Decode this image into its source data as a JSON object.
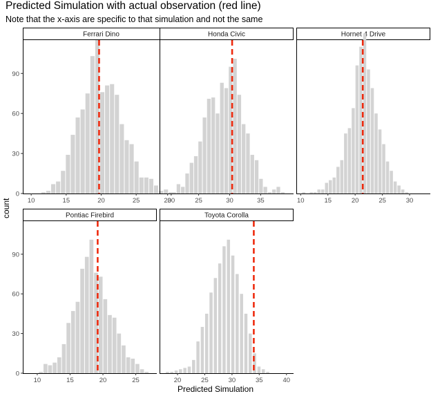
{
  "title": "Predicted Simulation with actual observation (red line)",
  "subtitle": "Note that the x-axis are specific to that simulation and not the same",
  "chart_data": {
    "type": "bar",
    "ylabel": "count",
    "xlabel": "Predicted Simulation",
    "ylim": [
      0,
      115
    ],
    "yticks": [
      0,
      30,
      60,
      90
    ],
    "bar_color": "#d3d3d3",
    "line_color": "#ee2a0e",
    "panels": [
      {
        "name": "Ferrari Dino",
        "xlim": [
          8.8,
          31.2
        ],
        "xticks": [
          10,
          15,
          20,
          25,
          30
        ],
        "actual": 19.7,
        "bins": [
          10.0,
          10.7,
          11.4,
          12.1,
          12.8,
          13.5,
          14.2,
          14.9,
          15.6,
          16.3,
          17.0,
          17.7,
          18.4,
          19.1,
          19.8,
          20.5,
          21.2,
          21.9,
          22.6,
          23.3,
          24.0,
          24.7,
          25.4,
          26.1,
          26.8,
          27.5,
          28.2,
          28.9,
          29.6,
          30.3
        ],
        "counts": [
          0,
          0,
          1,
          2,
          7,
          9,
          17,
          29,
          44,
          57,
          63,
          75,
          103,
          115,
          76,
          81,
          82,
          74,
          52,
          40,
          37,
          24,
          12,
          12,
          11,
          6,
          2,
          3,
          1,
          0
        ]
      },
      {
        "name": "Honda Civic",
        "xlim": [
          18.7,
          40.3
        ],
        "xticks": [
          20,
          25,
          30,
          35
        ],
        "actual": 30.4,
        "bins": [
          20.0,
          20.7,
          21.4,
          22.1,
          22.8,
          23.5,
          24.2,
          24.9,
          25.6,
          26.3,
          27.0,
          27.7,
          28.4,
          29.1,
          29.8,
          30.5,
          31.2,
          31.9,
          32.6,
          33.3,
          34.0,
          34.7,
          35.4,
          36.1,
          36.8,
          37.5,
          38.2
        ],
        "counts": [
          0,
          1,
          7,
          5,
          15,
          23,
          28,
          39,
          57,
          71,
          72,
          60,
          83,
          79,
          95,
          101,
          74,
          52,
          45,
          29,
          25,
          11,
          5,
          1,
          3,
          5,
          1
        ]
      },
      {
        "name": "Hornet 4 Drive",
        "xlim": [
          9.2,
          33.8
        ],
        "xticks": [
          10,
          15,
          20,
          25,
          30
        ],
        "actual": 21.4,
        "bins": [
          10.2,
          10.9,
          11.6,
          12.3,
          13.0,
          13.7,
          14.4,
          15.1,
          15.8,
          16.5,
          17.2,
          17.9,
          18.6,
          19.3,
          20.0,
          20.7,
          21.4,
          22.1,
          22.8,
          23.5,
          24.2,
          24.9,
          25.6,
          26.3,
          27.0,
          27.7,
          28.4,
          29.1
        ],
        "counts": [
          1,
          0,
          1,
          1,
          3,
          3,
          8,
          10,
          12,
          20,
          25,
          45,
          49,
          64,
          96,
          110,
          120,
          93,
          79,
          60,
          48,
          37,
          24,
          17,
          9,
          6,
          3,
          1
        ]
      },
      {
        "name": "Pontiac Firebird",
        "xlim": [
          7.8,
          28.2
        ],
        "xticks": [
          10,
          15,
          20,
          25
        ],
        "actual": 19.2,
        "bins": [
          8.8,
          9.5,
          10.2,
          10.9,
          11.6,
          12.3,
          13.0,
          13.7,
          14.4,
          15.1,
          15.8,
          16.5,
          17.2,
          17.9,
          18.6,
          19.3,
          20.0,
          20.7,
          21.4,
          22.1,
          22.8,
          23.5,
          24.2,
          24.9,
          25.6,
          26.3
        ],
        "counts": [
          0,
          0,
          1,
          7,
          6,
          8,
          12,
          22,
          38,
          47,
          54,
          79,
          88,
          101,
          76,
          73,
          56,
          44,
          42,
          30,
          21,
          12,
          11,
          7,
          3,
          1
        ]
      },
      {
        "name": "Toyota Corolla",
        "xlim": [
          16.7,
          41.3
        ],
        "xticks": [
          20,
          25,
          30,
          35,
          40
        ],
        "actual": 34.0,
        "bins": [
          17.8,
          18.6,
          19.4,
          20.2,
          21.0,
          21.8,
          22.6,
          23.4,
          24.2,
          25.0,
          25.8,
          26.6,
          27.4,
          28.2,
          29.0,
          29.8,
          30.6,
          31.4,
          32.2,
          33.0,
          33.8,
          34.6,
          35.4,
          36.2,
          37.0,
          37.8
        ],
        "counts": [
          1,
          1,
          2,
          3,
          4,
          5,
          10,
          24,
          35,
          45,
          61,
          72,
          83,
          96,
          101,
          89,
          75,
          60,
          45,
          30,
          15,
          5,
          3,
          1,
          0,
          0
        ]
      }
    ]
  }
}
